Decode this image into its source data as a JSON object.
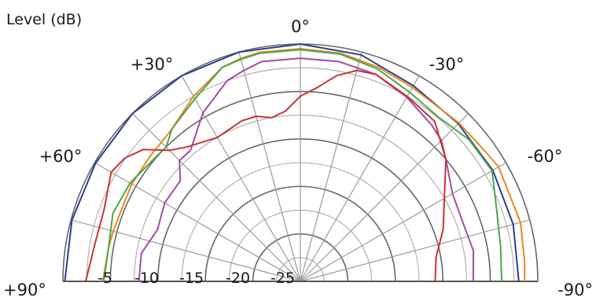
{
  "chart_data": {
    "type": "polar",
    "title": "Level (dB)",
    "angle_range": [
      -90,
      90
    ],
    "radial_range": [
      -25,
      0
    ],
    "grid": true,
    "angle_labels": [
      {
        "angle": 0,
        "label": "0°"
      },
      {
        "angle": 30,
        "label": "+30°"
      },
      {
        "angle": -30,
        "label": "-30°"
      },
      {
        "angle": 60,
        "label": "+60°"
      },
      {
        "angle": -60,
        "label": "-60°"
      },
      {
        "angle": 90,
        "label": "+90°"
      },
      {
        "angle": -90,
        "label": "-90°"
      }
    ],
    "radial_labels": [
      {
        "value": -5,
        "label": "-5"
      },
      {
        "value": -10,
        "label": "-10"
      },
      {
        "value": -15,
        "label": "-15"
      },
      {
        "value": -20,
        "label": "-20"
      },
      {
        "value": -25,
        "label": "-25"
      }
    ],
    "series": [
      {
        "color": "#2b3f8f",
        "angles": [
          90,
          75,
          60,
          45,
          30,
          15,
          0,
          -15,
          -30,
          -45,
          -60,
          -75,
          -90
        ],
        "values": [
          -0.2,
          -0.1,
          -0.1,
          0,
          0,
          0,
          0,
          -0.3,
          -1.2,
          -1.5,
          -1.6,
          -1.8,
          -2.0
        ]
      },
      {
        "color": "#e8891c",
        "angles": [
          90,
          80,
          75,
          70,
          60,
          50,
          45,
          40,
          30,
          20,
          15,
          10,
          0,
          -10,
          -20,
          -30,
          -45,
          -55,
          -60,
          -75,
          -85,
          -90
        ],
        "values": [
          -4.2,
          -4.5,
          -4.6,
          -4.7,
          -4.5,
          -4.4,
          -4.3,
          -4.0,
          -2.5,
          -1.0,
          -0.7,
          -0.5,
          -0.5,
          -0.6,
          -1.0,
          -1.4,
          -1.4,
          -1.2,
          -0.9,
          -1.0,
          -1.3,
          -1.4
        ]
      },
      {
        "color": "#4ca64c",
        "angles": [
          90,
          80,
          70,
          60,
          50,
          45,
          40,
          30,
          20,
          15,
          10,
          0,
          -10,
          -20,
          -30,
          -40,
          -50,
          -60,
          -70,
          -80,
          -90
        ],
        "values": [
          -4.3,
          -4.5,
          -4.0,
          -4.3,
          -4.9,
          -5.0,
          -4.0,
          -2.8,
          -1.0,
          -0.8,
          -0.6,
          -0.6,
          -0.7,
          -1.2,
          -2.0,
          -2.4,
          -1.8,
          -1.7,
          -3.0,
          -3.6,
          -3.8
        ]
      },
      {
        "color": "#a44aa4",
        "angles": [
          90,
          80,
          70,
          60,
          50,
          45,
          40,
          30,
          20,
          15,
          10,
          0,
          -10,
          -20,
          -30,
          -40,
          -45,
          -50,
          -60,
          -70,
          -80,
          -90
        ],
        "values": [
          -8.0,
          -8.0,
          -9.0,
          -8.5,
          -8.5,
          -7.0,
          -7.0,
          -4.5,
          -2.5,
          -2.0,
          -1.5,
          -1.5,
          -1.5,
          -1.8,
          -2.6,
          -3.5,
          -4.0,
          -5.0,
          -6.5,
          -6.8,
          -6.5,
          -6.8
        ]
      },
      {
        "color": "#cc3333",
        "angles": [
          90,
          85,
          80,
          70,
          60,
          55,
          50,
          45,
          40,
          30,
          20,
          15,
          10,
          5,
          0,
          -5,
          -10,
          -15,
          -20,
          -30,
          -40,
          -50,
          -60,
          -70,
          -80,
          -90
        ],
        "values": [
          -2.4,
          -2.8,
          -3.0,
          -3.0,
          -2.0,
          -2.4,
          -3.4,
          -5.5,
          -6.5,
          -7.5,
          -7.0,
          -7.0,
          -7.5,
          -7.0,
          -5.5,
          -4.5,
          -3.0,
          -2.0,
          -1.8,
          -2.5,
          -3.0,
          -5.0,
          -7.5,
          -9.0,
          -10.5,
          -10.8
        ]
      }
    ]
  }
}
